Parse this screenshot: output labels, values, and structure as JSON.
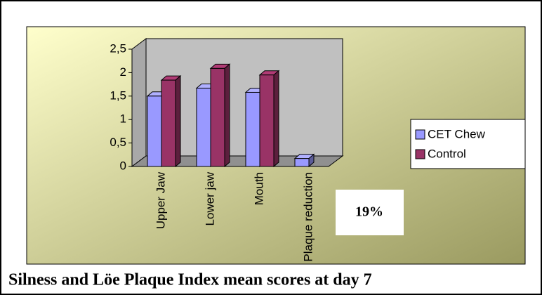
{
  "chart_data": {
    "type": "bar3d",
    "caption": "Silness and Löe Plaque Index mean scores at day 7",
    "annotation": "19%",
    "categories": [
      "Upper Jaw",
      "Lower jaw",
      "Mouth",
      "Plaque reduction"
    ],
    "series": [
      {
        "name": "CET Chew",
        "color": "#9999ff",
        "values": [
          1.5,
          1.67,
          1.58,
          0.17
        ]
      },
      {
        "name": "Control",
        "color": "#993366",
        "values": [
          1.84,
          2.09,
          1.95,
          null
        ]
      }
    ],
    "ylim": [
      0,
      2.5
    ],
    "yticks": [
      0,
      {
        "value": 0.5,
        "label": "0,5"
      },
      1,
      {
        "value": 1.5,
        "label": "1,5"
      },
      2,
      {
        "value": 2.5,
        "label": "2,5"
      }
    ],
    "legend": "right"
  }
}
